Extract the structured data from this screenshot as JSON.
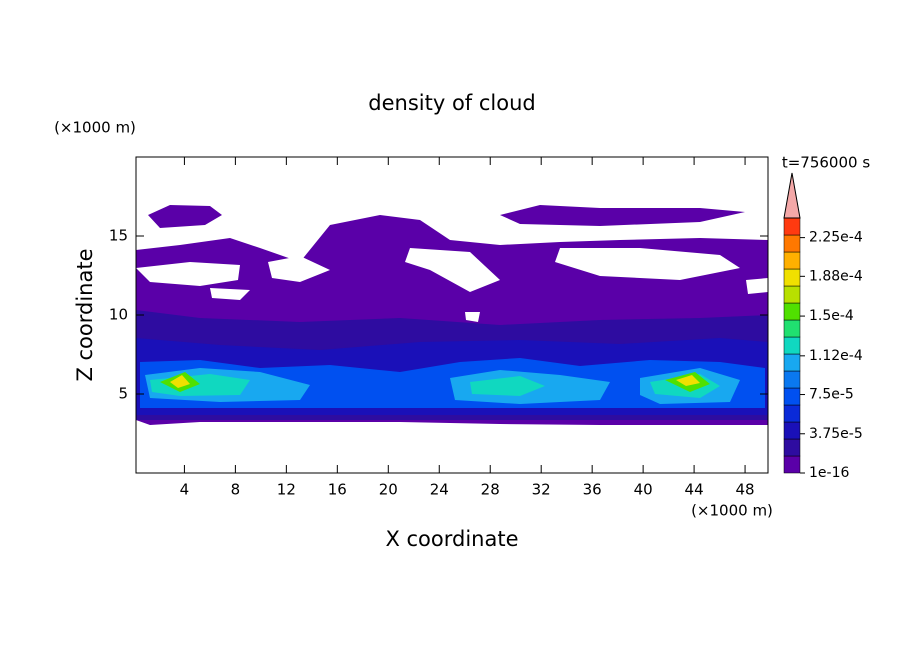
{
  "chart_data": {
    "type": "contour",
    "title": "density of cloud",
    "x_label": "X coordinate",
    "y_label": "Z coordinate",
    "x_unit": "(×1000 m)",
    "y_unit": "(×1000 m)",
    "annotation": "t=756000 s",
    "xlim": [
      0.2,
      49.8
    ],
    "xticks": [
      4,
      8,
      12,
      16,
      20,
      24,
      28,
      32,
      36,
      40,
      44,
      48
    ],
    "ylim": [
      0,
      20
    ],
    "yticks": [
      5,
      10,
      15
    ],
    "clim": [
      1e-16,
      0.00024375
    ],
    "cticks": [
      {
        "value": 1e-16,
        "label": "1e-16"
      },
      {
        "value": 3.75e-05,
        "label": "3.75e-5"
      },
      {
        "value": 7.5e-05,
        "label": "7.5e-5"
      },
      {
        "value": 0.000112,
        "label": "1.12e-4"
      },
      {
        "value": 0.00015,
        "label": "1.5e-4"
      },
      {
        "value": 0.000188,
        "label": "1.88e-4"
      },
      {
        "value": 0.000225,
        "label": "2.25e-4"
      }
    ],
    "colors": [
      "#5a00a8",
      "#2e0ca0",
      "#1a10b8",
      "#0a2ad8",
      "#0050f0",
      "#0a78f0",
      "#18a8f0",
      "#10d8c0",
      "#20e070",
      "#50e000",
      "#b8e000",
      "#f0e000",
      "#ffb000",
      "#ff7800",
      "#ff3a10"
    ],
    "extend_color": "#f4a8a8"
  }
}
